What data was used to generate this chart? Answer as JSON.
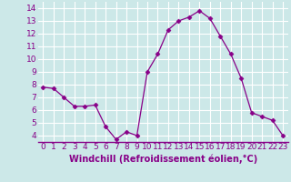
{
  "x": [
    0,
    1,
    2,
    3,
    4,
    5,
    6,
    7,
    8,
    9,
    10,
    11,
    12,
    13,
    14,
    15,
    16,
    17,
    18,
    19,
    20,
    21,
    22,
    23
  ],
  "y": [
    7.8,
    7.7,
    7.0,
    6.3,
    6.3,
    6.4,
    4.7,
    3.7,
    4.3,
    4.0,
    9.0,
    10.4,
    12.3,
    13.0,
    13.3,
    13.8,
    13.2,
    11.8,
    10.4,
    8.5,
    5.8,
    5.5,
    5.2,
    4.0
  ],
  "line_color": "#880088",
  "marker": "D",
  "marker_size": 2.5,
  "bg_color": "#cce8e8",
  "grid_color": "#ffffff",
  "axis_line_color": "#880088",
  "xlabel": "Windchill (Refroidissement éolien,°C)",
  "xlabel_color": "#880088",
  "tick_color": "#880088",
  "ylabel_ticks": [
    4,
    5,
    6,
    7,
    8,
    9,
    10,
    11,
    12,
    13,
    14
  ],
  "xlim": [
    -0.5,
    23.5
  ],
  "ylim": [
    3.5,
    14.5
  ],
  "tick_fontsize": 6.5,
  "label_fontsize": 7
}
